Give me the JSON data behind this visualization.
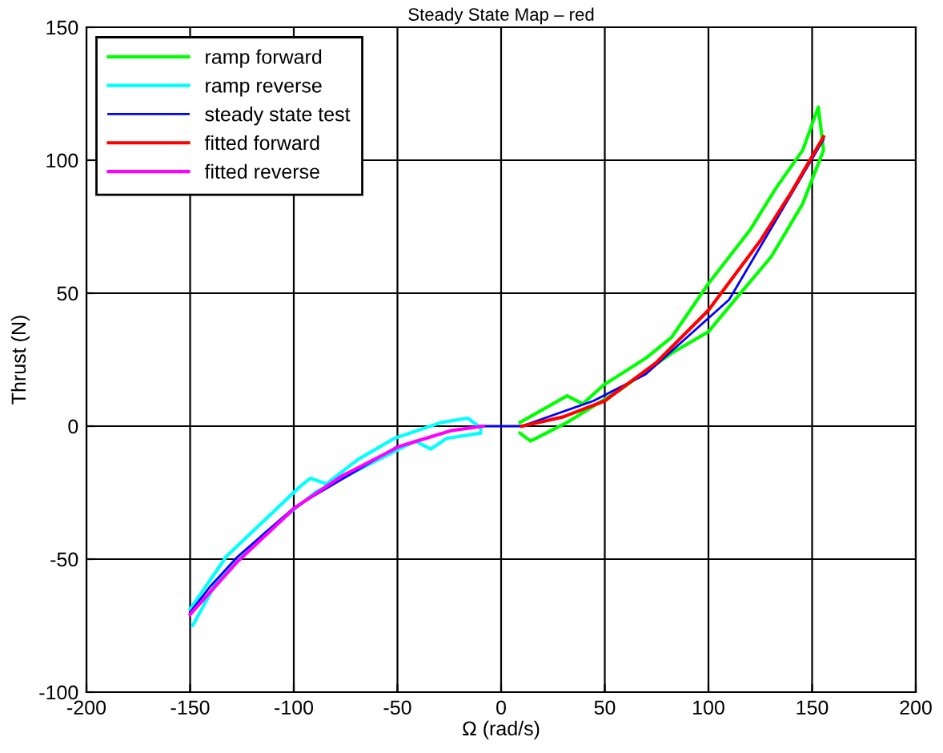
{
  "chart_data": {
    "type": "line",
    "title": "Steady State Map – red",
    "xlabel": "Ω (rad/s)",
    "ylabel": "Thrust (N)",
    "xlim": [
      -200,
      200
    ],
    "ylim": [
      -100,
      150
    ],
    "xticks": [
      -200,
      -150,
      -100,
      -50,
      0,
      50,
      100,
      150,
      200
    ],
    "yticks": [
      -100,
      -50,
      0,
      50,
      100,
      150
    ],
    "grid": true,
    "legend": "top left",
    "marker": "none",
    "line_style": "solid",
    "series": [
      {
        "name": "ramp forward",
        "color": "#00ff00",
        "x": [
          9.1,
          31.8,
          39.4,
          49.5,
          69.7,
          82.3,
          100,
          120,
          132.8,
          145.5,
          153,
          155.5,
          145.5,
          130.3,
          115,
          100,
          82.3,
          57,
          31.8,
          14.2,
          9.1
        ],
        "values": [
          1.4,
          11.4,
          8.4,
          15.5,
          25.5,
          33.5,
          53.6,
          73.7,
          89.8,
          103.8,
          120,
          103.8,
          83.7,
          63.7,
          49.6,
          35.5,
          27.5,
          13.5,
          1.4,
          -5.6,
          -2.6
        ]
      },
      {
        "name": "ramp reverse",
        "color": "#00ffff",
        "x": [
          -150,
          -132.3,
          -97,
          -92,
          -84.3,
          -69.2,
          -51.5,
          -28.8,
          -16.1,
          -9.8,
          -9.8,
          -26.3,
          -33.9,
          -41.4,
          -64.2,
          -89.4,
          -114.6,
          -137.4,
          -148.7
        ],
        "values": [
          -68.8,
          -48.8,
          -22.7,
          -19.6,
          -21.7,
          -12.6,
          -4.6,
          1.4,
          3,
          -0.6,
          -2.6,
          -4.6,
          -8.6,
          -5.6,
          -14.6,
          -24.7,
          -40.7,
          -58.8,
          -74.9
        ]
      },
      {
        "name": "steady state test",
        "color": "#0000ff",
        "x": [
          -150,
          -140,
          -127,
          -100,
          -50,
          -20,
          -10,
          10,
          44.5,
          69.7,
          110,
          140.4,
          155.5
        ],
        "values": [
          -70,
          -60,
          -49,
          -30.7,
          -7.6,
          null,
          0,
          0,
          9.5,
          19.5,
          47.6,
          87.8,
          107.8
        ]
      },
      {
        "name": "fitted forward",
        "color": "#ff0000",
        "x": [
          10,
          30,
          50,
          75,
          100,
          125,
          140,
          155.5
        ],
        "values": [
          0,
          3.5,
          9.5,
          24,
          43.6,
          69.7,
          88,
          108.8
        ]
      },
      {
        "name": "fitted reverse",
        "color": "#ff00ff",
        "x": [
          -150,
          -127,
          -99.5,
          -76.7,
          -49,
          -23.7,
          -8.6
        ],
        "values": [
          -70.8,
          -50.8,
          -30.7,
          -18.7,
          -7.6,
          -1.6,
          0
        ]
      }
    ]
  }
}
